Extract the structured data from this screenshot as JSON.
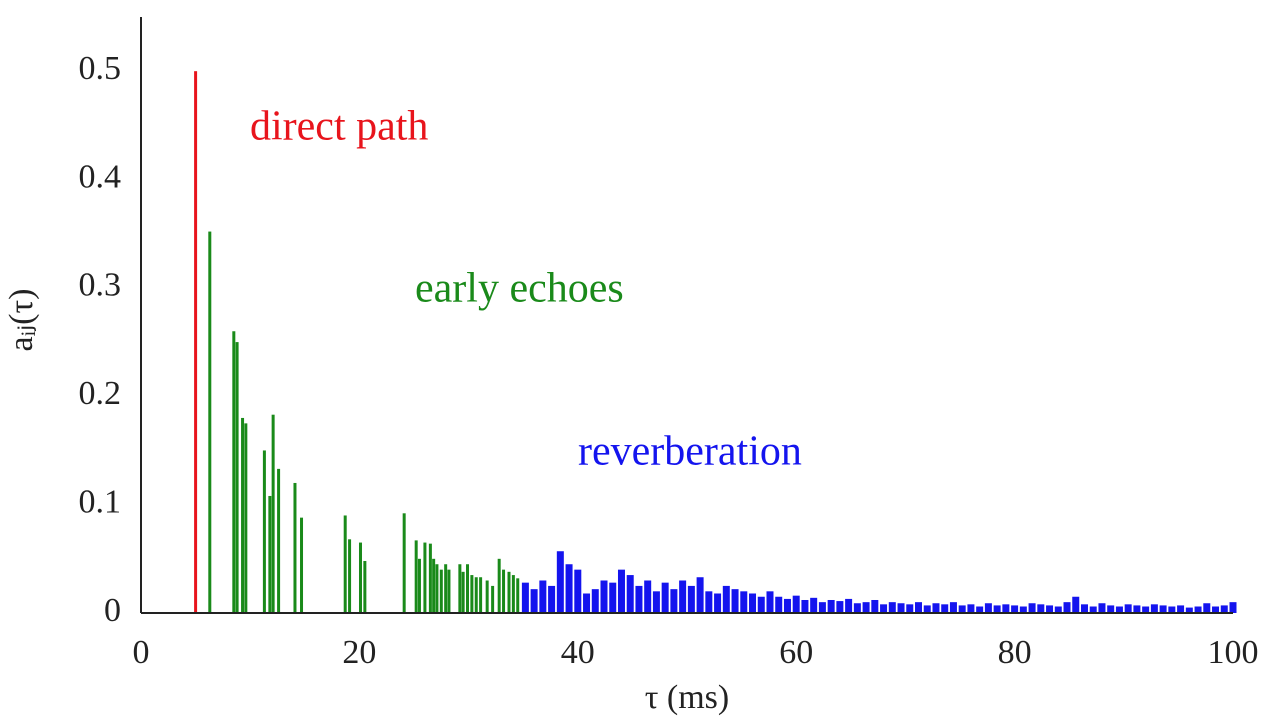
{
  "chart_data": {
    "type": "bar",
    "xlabel": "τ (ms)",
    "ylabel": "aᵢⱼ(τ)",
    "xlim": [
      0,
      100
    ],
    "xticks": [
      0,
      20,
      40,
      60,
      80,
      100
    ],
    "ylim": [
      0,
      0.55
    ],
    "yticks": [
      0,
      0.1,
      0.2,
      0.3,
      0.4,
      0.5
    ],
    "series": [
      {
        "name": "direct path",
        "color": "#e8141c",
        "x": [
          5
        ],
        "values": [
          0.5
        ]
      },
      {
        "name": "early echoes",
        "color": "#1a8a1a",
        "x": [
          6.3,
          8.5,
          8.8,
          9.3,
          9.6,
          11.3,
          11.8,
          12.1,
          12.6,
          14.1,
          14.7,
          18.7,
          19.1,
          20.1,
          20.5,
          24.1,
          25.2,
          25.5,
          26.0,
          26.5,
          26.8,
          27.1,
          27.5,
          27.9,
          28.2,
          29.2,
          29.5,
          29.9,
          30.3,
          30.7,
          31.1,
          31.7,
          32.2,
          32.8,
          33.2,
          33.7,
          34.1,
          34.5
        ],
        "values": [
          0.352,
          0.26,
          0.25,
          0.18,
          0.175,
          0.15,
          0.108,
          0.183,
          0.133,
          0.12,
          0.088,
          0.09,
          0.068,
          0.065,
          0.048,
          0.092,
          0.067,
          0.05,
          0.065,
          0.064,
          0.05,
          0.045,
          0.04,
          0.045,
          0.04,
          0.045,
          0.038,
          0.045,
          0.035,
          0.033,
          0.033,
          0.03,
          0.025,
          0.05,
          0.04,
          0.038,
          0.035,
          0.032
        ]
      },
      {
        "name": "reverberation",
        "color": "#1414ee",
        "x": [
          35.2,
          36.0,
          36.8,
          37.6,
          38.4,
          39.2,
          40.0,
          40.8,
          41.6,
          42.4,
          43.2,
          44.0,
          44.8,
          45.6,
          46.4,
          47.2,
          48.0,
          48.8,
          49.6,
          50.4,
          51.2,
          52.0,
          52.8,
          53.6,
          54.4,
          55.2,
          56.0,
          56.8,
          57.6,
          58.4,
          59.2,
          60.0,
          60.8,
          61.6,
          62.4,
          63.2,
          64.0,
          64.8,
          65.6,
          66.4,
          67.2,
          68.0,
          68.8,
          69.6,
          70.4,
          71.2,
          72.0,
          72.8,
          73.6,
          74.4,
          75.2,
          76.0,
          76.8,
          77.6,
          78.4,
          79.2,
          80.0,
          80.8,
          81.6,
          82.4,
          83.2,
          84.0,
          84.8,
          85.6,
          86.4,
          87.2,
          88.0,
          88.8,
          89.6,
          90.4,
          91.2,
          92.0,
          92.8,
          93.6,
          94.4,
          95.2,
          96.0,
          96.8,
          97.6,
          98.4,
          99.2,
          100.0
        ],
        "values": [
          0.028,
          0.022,
          0.03,
          0.025,
          0.057,
          0.045,
          0.04,
          0.018,
          0.022,
          0.03,
          0.028,
          0.04,
          0.035,
          0.025,
          0.03,
          0.02,
          0.028,
          0.022,
          0.03,
          0.025,
          0.033,
          0.02,
          0.018,
          0.025,
          0.022,
          0.02,
          0.018,
          0.015,
          0.02,
          0.015,
          0.013,
          0.016,
          0.012,
          0.014,
          0.01,
          0.012,
          0.011,
          0.013,
          0.009,
          0.01,
          0.012,
          0.008,
          0.01,
          0.009,
          0.008,
          0.01,
          0.007,
          0.009,
          0.008,
          0.01,
          0.007,
          0.008,
          0.006,
          0.009,
          0.007,
          0.008,
          0.007,
          0.006,
          0.009,
          0.008,
          0.007,
          0.006,
          0.01,
          0.015,
          0.008,
          0.006,
          0.009,
          0.007,
          0.006,
          0.008,
          0.007,
          0.006,
          0.008,
          0.007,
          0.006,
          0.007,
          0.005,
          0.006,
          0.009,
          0.006,
          0.007,
          0.01
        ]
      }
    ]
  }
}
